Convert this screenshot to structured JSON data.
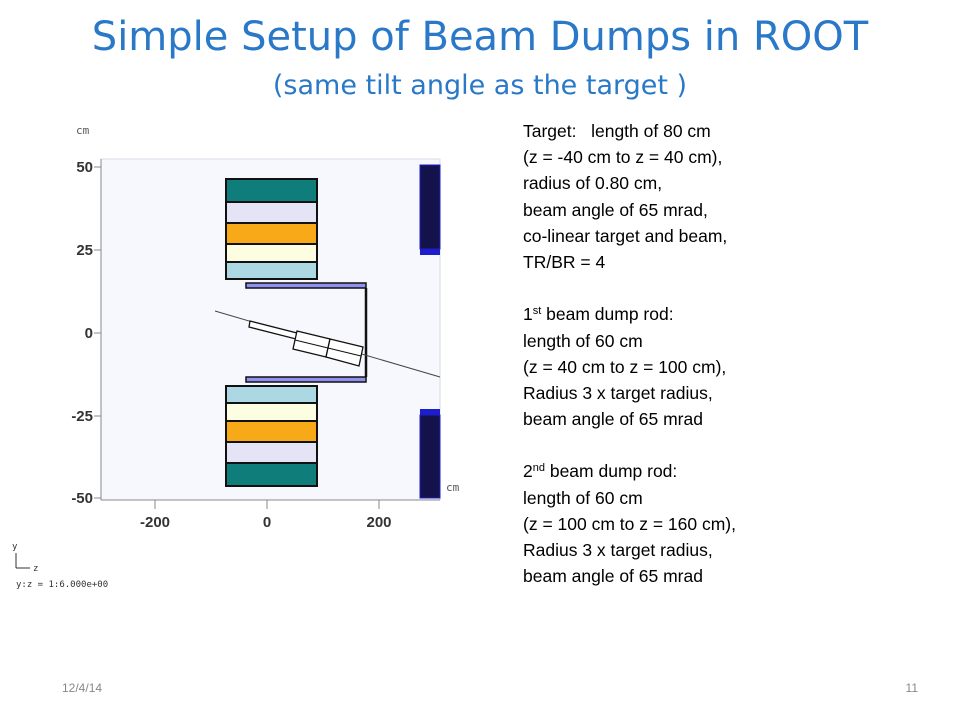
{
  "title": "Simple Setup of Beam Dumps in ROOT",
  "subtitle": "(same tilt angle as the target )",
  "plot": {
    "unit_y": "cm",
    "unit_x": "cm",
    "y_ticks": [
      "50",
      "25",
      "0",
      "-25",
      "-50"
    ],
    "x_ticks": [
      "-200",
      "0",
      "200"
    ],
    "axis_legend": {
      "y": "y",
      "z": "z",
      "ratio": "y:z = 1:6.000e+00"
    }
  },
  "colors": {
    "teal": "#0f7d7a",
    "lavender": "#e3e4f6",
    "orange": "#f7a918",
    "cream": "#fdfde2",
    "lightblue": "#acd8e4",
    "plate": "#9090ee",
    "navy": "#14124a",
    "blue": "#1d1dcc"
  },
  "notes": {
    "target": [
      "Target:   length of 80 cm",
      "(z = -40 cm to z = 40 cm),",
      "radius of 0.80 cm,",
      "beam angle of 65 mrad,",
      "co-linear target and beam,",
      "TR/BR = 4"
    ],
    "dump1": {
      "num": "1",
      "sup": "st",
      "rest": " beam dump rod:",
      "lines": [
        "length of 60 cm",
        "(z = 40 cm to z = 100 cm),",
        "Radius 3 x target radius,",
        "beam angle of 65 mrad"
      ]
    },
    "dump2": {
      "num": "2",
      "sup": "nd",
      "rest": " beam dump rod:",
      "lines": [
        "length of 60 cm",
        "(z = 100 cm to z = 160 cm),",
        "Radius 3 x target radius,",
        "beam angle of 65 mrad"
      ]
    }
  },
  "footer": {
    "date": "12/4/14",
    "page": "11"
  }
}
